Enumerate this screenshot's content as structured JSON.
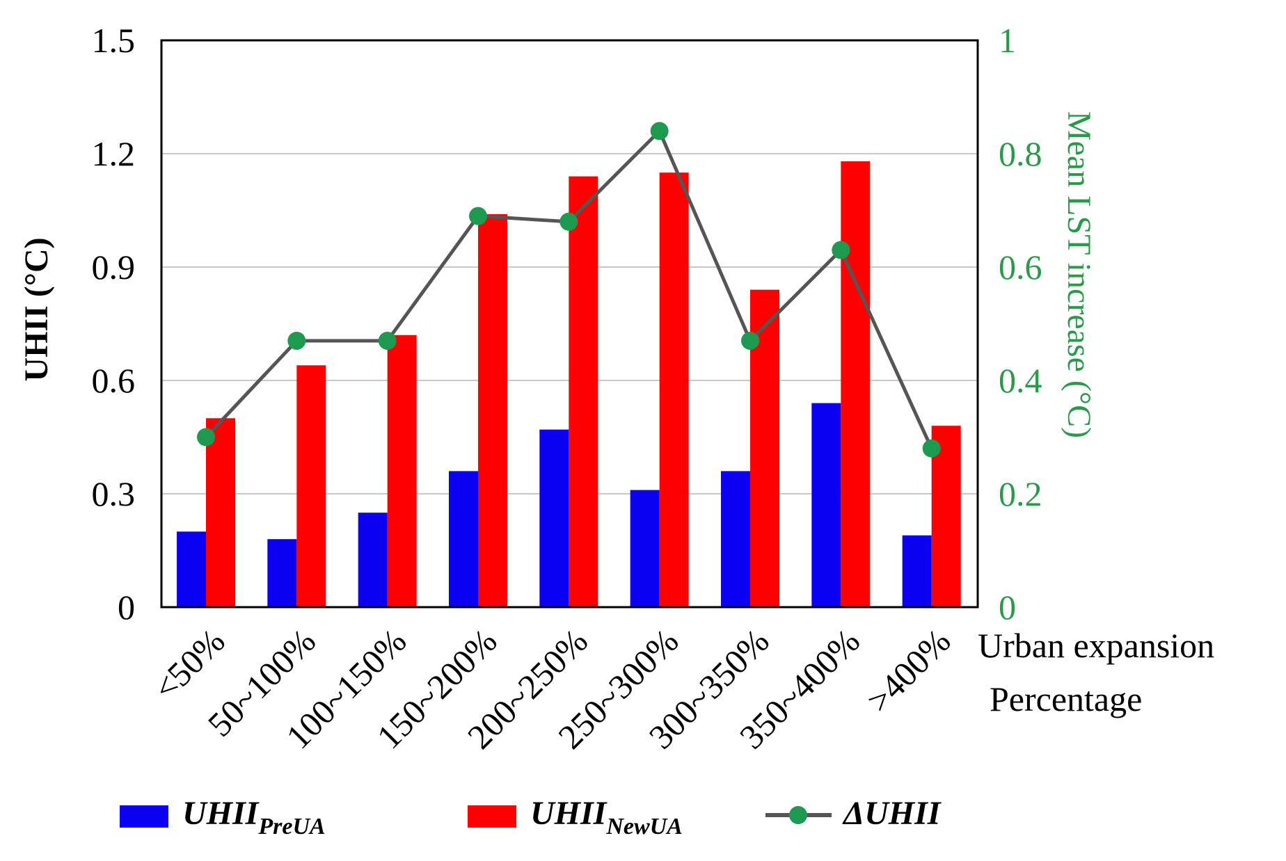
{
  "colors": {
    "pre": "#0b00f0",
    "new": "#ff0000",
    "line": "#555555",
    "marker": "#1e9a50",
    "right_axis": "#2a9a4a",
    "grid": "#c8c8c8"
  },
  "chart_data": {
    "type": "bar",
    "categories": [
      "<50%",
      "50~100%",
      "100~150%",
      "150~200%",
      "200~250%",
      "250~300%",
      "300~350%",
      "350~400%",
      ">400%"
    ],
    "series": [
      {
        "name": "UHII PreUA",
        "axis": "left",
        "kind": "bar",
        "values": [
          0.2,
          0.18,
          0.25,
          0.36,
          0.47,
          0.31,
          0.36,
          0.54,
          0.19
        ]
      },
      {
        "name": "UHII NewUA",
        "axis": "left",
        "kind": "bar",
        "values": [
          0.5,
          0.64,
          0.72,
          1.04,
          1.14,
          1.15,
          0.84,
          1.18,
          0.48
        ]
      },
      {
        "name": "ΔUHII",
        "axis": "right",
        "kind": "line",
        "values": [
          0.3,
          0.47,
          0.47,
          0.69,
          0.68,
          0.84,
          0.47,
          0.63,
          0.28
        ]
      }
    ],
    "left_axis": {
      "title": "UHII (°C)",
      "ylim": [
        0,
        1.5
      ],
      "ticks": [
        0,
        0.3,
        0.6,
        0.9,
        1.2,
        1.5
      ],
      "tick_labels": [
        "0",
        "0.3",
        "0.6",
        "0.9",
        "1.2",
        "1.5"
      ]
    },
    "right_axis": {
      "title": "Mean LST increase (°C)",
      "ylim": [
        0,
        1
      ],
      "ticks": [
        0,
        0.2,
        0.4,
        0.6,
        0.8,
        1
      ],
      "tick_labels": [
        "0",
        "0.2",
        "0.4",
        "0.6",
        "0.8",
        "1"
      ]
    },
    "xlabel_line1": "Urban expansion",
    "xlabel_line2": "Percentage",
    "grid": true,
    "legend": [
      {
        "base": "UHII",
        "sub": "PreUA",
        "kind": "bar"
      },
      {
        "base": "UHII",
        "sub": "NewUA",
        "kind": "bar"
      },
      {
        "base": "ΔUHII",
        "sub": "",
        "kind": "line"
      }
    ]
  }
}
